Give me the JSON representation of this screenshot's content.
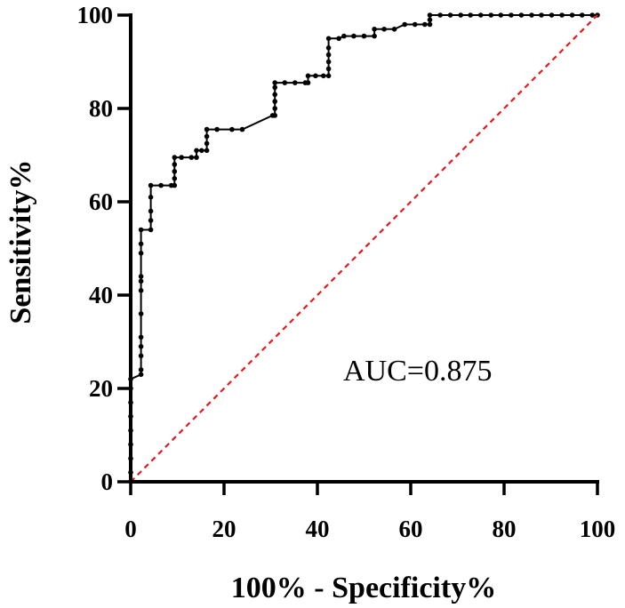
{
  "chart_data": {
    "type": "line",
    "title": "",
    "xlabel": "100% - Specificity%",
    "ylabel": "Sensitivity%",
    "xlim": [
      0,
      100
    ],
    "ylim": [
      0,
      100
    ],
    "xticks": [
      0,
      20,
      40,
      60,
      80,
      100
    ],
    "yticks": [
      0,
      20,
      40,
      60,
      80,
      100
    ],
    "grid": false,
    "annotation": "AUC=0.875",
    "series": [
      {
        "name": "ROC curve",
        "color": "#000000",
        "style": "solid",
        "markers": true,
        "points": [
          [
            0,
            0
          ],
          [
            0,
            2
          ],
          [
            0,
            5
          ],
          [
            0,
            8
          ],
          [
            0,
            11
          ],
          [
            0,
            14
          ],
          [
            0,
            17
          ],
          [
            0,
            20
          ],
          [
            0,
            22
          ],
          [
            2.2,
            23
          ],
          [
            2.2,
            24
          ],
          [
            2.2,
            27
          ],
          [
            2.2,
            29
          ],
          [
            2.2,
            31
          ],
          [
            2.2,
            36
          ],
          [
            2.2,
            41
          ],
          [
            2.2,
            43
          ],
          [
            2.2,
            44
          ],
          [
            2.2,
            49
          ],
          [
            2.2,
            51
          ],
          [
            2.2,
            54
          ],
          [
            4.3,
            54
          ],
          [
            4.3,
            56
          ],
          [
            4.3,
            58
          ],
          [
            4.3,
            61
          ],
          [
            4.3,
            63.5
          ],
          [
            6.5,
            63.5
          ],
          [
            8.7,
            63.5
          ],
          [
            9.4,
            63.5
          ],
          [
            9.4,
            65
          ],
          [
            9.4,
            66.5
          ],
          [
            9.4,
            68
          ],
          [
            9.4,
            69.5
          ],
          [
            10.9,
            69.5
          ],
          [
            13.0,
            69.5
          ],
          [
            14.1,
            69.5
          ],
          [
            14.1,
            71
          ],
          [
            15.2,
            71
          ],
          [
            16.3,
            71
          ],
          [
            16.3,
            72.5
          ],
          [
            16.3,
            74
          ],
          [
            16.3,
            75.5
          ],
          [
            18.5,
            75.5
          ],
          [
            21.7,
            75.5
          ],
          [
            23.9,
            75.5
          ],
          [
            30.4,
            78.5
          ],
          [
            30.9,
            78.5
          ],
          [
            30.9,
            80
          ],
          [
            30.9,
            81.5
          ],
          [
            30.9,
            83
          ],
          [
            30.9,
            84.5
          ],
          [
            30.9,
            85.5
          ],
          [
            33.0,
            85.5
          ],
          [
            35.2,
            85.5
          ],
          [
            37.4,
            85.5
          ],
          [
            38.0,
            85.5
          ],
          [
            38.0,
            87
          ],
          [
            39.6,
            87
          ],
          [
            41.3,
            87
          ],
          [
            42.4,
            87
          ],
          [
            42.4,
            88.5
          ],
          [
            42.4,
            90
          ],
          [
            42.4,
            91.5
          ],
          [
            42.4,
            93
          ],
          [
            42.4,
            95
          ],
          [
            44.6,
            95
          ],
          [
            45.7,
            95.5
          ],
          [
            47.8,
            95.5
          ],
          [
            50.0,
            95.5
          ],
          [
            52.2,
            95.5
          ],
          [
            52.2,
            97
          ],
          [
            54.3,
            97
          ],
          [
            56.5,
            97
          ],
          [
            58.7,
            98
          ],
          [
            60.9,
            98
          ],
          [
            63.0,
            98
          ],
          [
            64.1,
            98
          ],
          [
            64.1,
            99
          ],
          [
            64.1,
            100
          ],
          [
            66.3,
            100
          ],
          [
            68.5,
            100
          ],
          [
            70.7,
            100
          ],
          [
            72.8,
            100
          ],
          [
            75.0,
            100
          ],
          [
            77.2,
            100
          ],
          [
            79.3,
            100
          ],
          [
            81.5,
            100
          ],
          [
            83.7,
            100
          ],
          [
            85.9,
            100
          ],
          [
            88.0,
            100
          ],
          [
            90.2,
            100
          ],
          [
            92.4,
            100
          ],
          [
            94.6,
            100
          ],
          [
            96.7,
            100
          ],
          [
            98.9,
            100
          ],
          [
            100,
            100
          ]
        ]
      },
      {
        "name": "Reference line",
        "color": "#e41a1c",
        "style": "dashed",
        "markers": false,
        "points": [
          [
            0,
            0
          ],
          [
            100,
            100
          ]
        ]
      }
    ]
  }
}
